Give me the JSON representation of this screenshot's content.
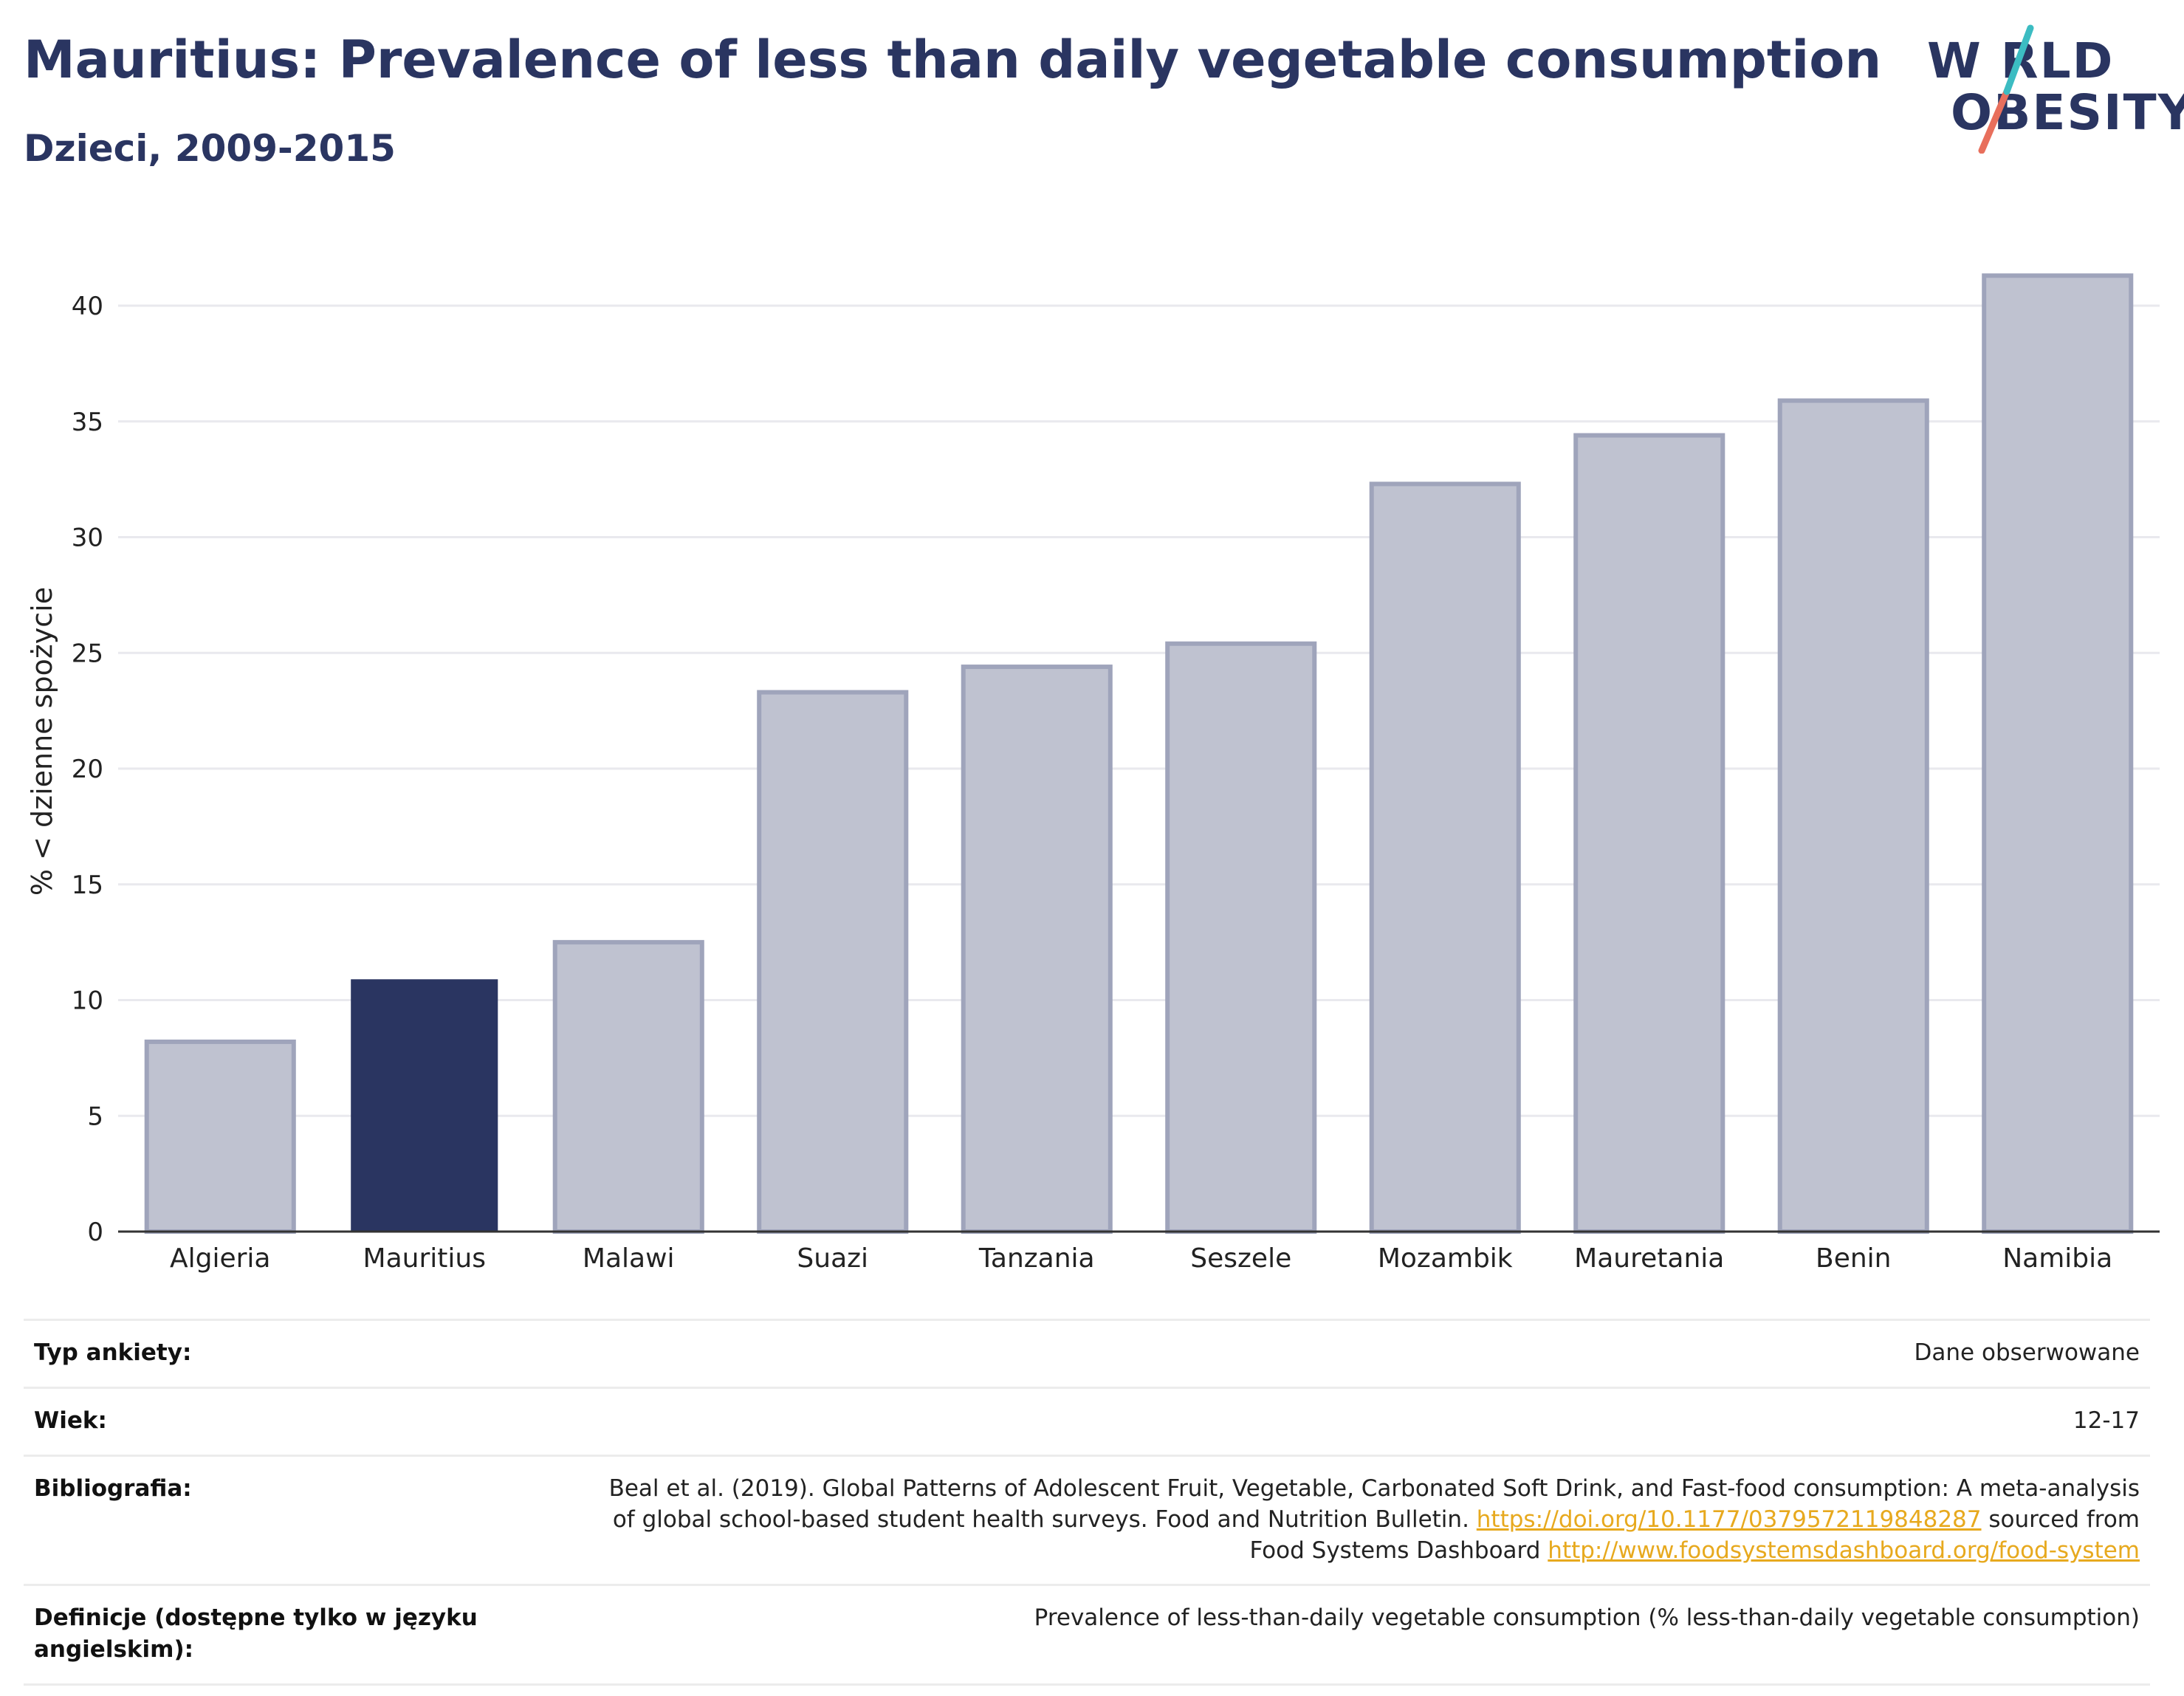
{
  "header": {
    "title": "Mauritius: Prevalence of less than daily vegetable consumption",
    "subtitle": "Dzieci, 2009-2015"
  },
  "logo": {
    "line1": "W RLD",
    "line2": "OBESITY",
    "alt_text": "WORLD OBESITY"
  },
  "colors": {
    "highlight_bar": "#2a3561",
    "other_bars": "#bfc2d0",
    "other_bar_border": "#9fa4bb",
    "link": "#e7a91e",
    "logo_teal": "#3cbcc2",
    "logo_coral": "#e86f5c"
  },
  "chart_data": {
    "type": "bar",
    "title": "Mauritius: Prevalence of less than daily vegetable consumption",
    "subtitle": "Dzieci, 2009-2015",
    "ylabel": "% < dzienne spożycie",
    "xlabel": "",
    "ylim": [
      0,
      43
    ],
    "yticks": [
      0,
      5,
      10,
      15,
      20,
      25,
      30,
      35,
      40
    ],
    "grid": true,
    "highlight": "Mauritius",
    "categories": [
      "Algieria",
      "Mauritius",
      "Malawi",
      "Suazi",
      "Tanzania",
      "Seszele",
      "Mozambik",
      "Mauretania",
      "Benin",
      "Namibia"
    ],
    "values": [
      8.2,
      10.9,
      12.5,
      23.3,
      24.4,
      25.4,
      32.3,
      34.4,
      35.9,
      41.3
    ]
  },
  "meta": [
    {
      "label": "Typ ankiety:",
      "value": "Dane obserwowane"
    },
    {
      "label": "Wiek:",
      "value": "12-17"
    },
    {
      "label": "Bibliografia:",
      "value_lines": [
        "Beal et al. (2019). Global Patterns of Adolescent Fruit, Vegetable, Carbonated Soft Drink, and Fast-food consumption: A meta-analysis",
        "of global school-based student health surveys. Food and Nutrition Bulletin. ",
        "https://doi.org/10.1177/0379572119848287",
        " sourced from",
        "Food Systems Dashboard ",
        "http://www.foodsystemsdashboard.org/food-system"
      ]
    },
    {
      "label": "Definicje (dostępne tylko w języku angielskim):",
      "value": "Prevalence of less-than-daily vegetable consumption (% less-than-daily vegetable consumption)"
    }
  ]
}
